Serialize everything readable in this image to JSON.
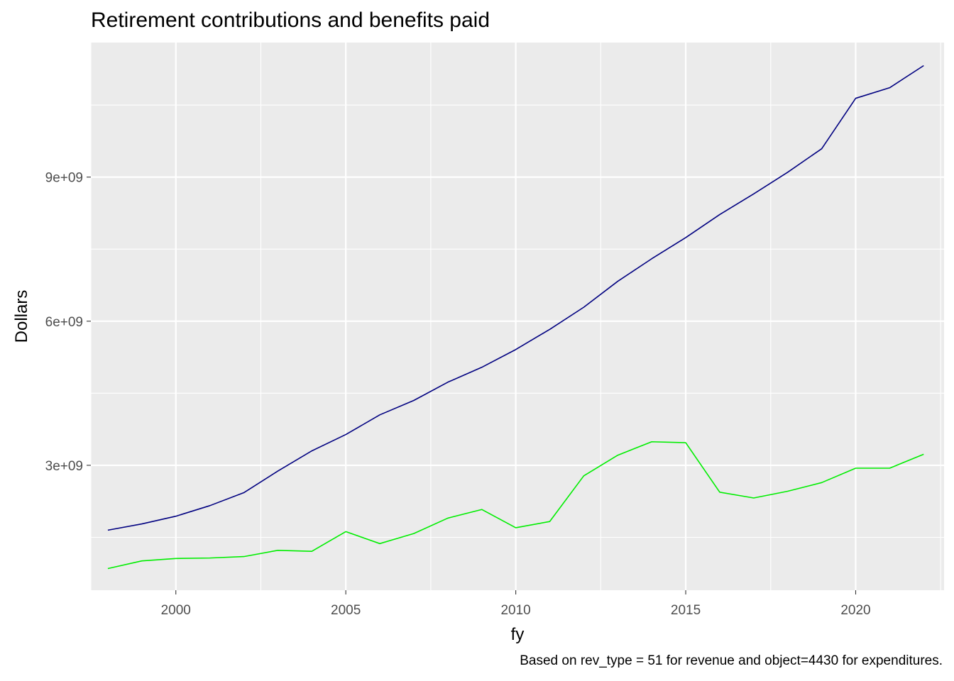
{
  "chart_data": {
    "type": "line",
    "title": "Retirement contributions and benefits paid",
    "caption": "Based on rev_type = 51 for revenue and object=4430 for expenditures.",
    "xlabel": "fy",
    "ylabel": "Dollars",
    "x": [
      1998,
      1999,
      2000,
      2001,
      2002,
      2003,
      2004,
      2005,
      2006,
      2007,
      2008,
      2009,
      2010,
      2011,
      2012,
      2013,
      2014,
      2015,
      2016,
      2017,
      2018,
      2019,
      2020,
      2021,
      2022
    ],
    "xlim": [
      1997.5,
      2022.6
    ],
    "ylim": [
      400000000,
      11800000000
    ],
    "x_ticks": [
      2000,
      2005,
      2010,
      2015,
      2020
    ],
    "x_tick_labels": [
      "2000",
      "2005",
      "2010",
      "2015",
      "2020"
    ],
    "y_ticks": [
      3000000000,
      6000000000,
      9000000000
    ],
    "y_tick_labels": [
      "3e+09",
      "6e+09",
      "9e+09"
    ],
    "grid": true,
    "legend": "none",
    "series": [
      {
        "color": "#000080",
        "values": [
          1650000000,
          1780000000,
          1940000000,
          2160000000,
          2430000000,
          2880000000,
          3300000000,
          3640000000,
          4050000000,
          4350000000,
          4730000000,
          5040000000,
          5410000000,
          5830000000,
          6290000000,
          6830000000,
          7300000000,
          7740000000,
          8220000000,
          8650000000,
          9100000000,
          9590000000,
          10640000000,
          10860000000,
          11320000000
        ]
      },
      {
        "color": "#00ee00",
        "values": [
          850000000,
          1010000000,
          1060000000,
          1070000000,
          1100000000,
          1230000000,
          1210000000,
          1620000000,
          1370000000,
          1580000000,
          1900000000,
          2080000000,
          1700000000,
          1830000000,
          2780000000,
          3210000000,
          3490000000,
          3470000000,
          2440000000,
          2320000000,
          2460000000,
          2640000000,
          2940000000,
          2940000000,
          3230000000
        ]
      }
    ]
  }
}
